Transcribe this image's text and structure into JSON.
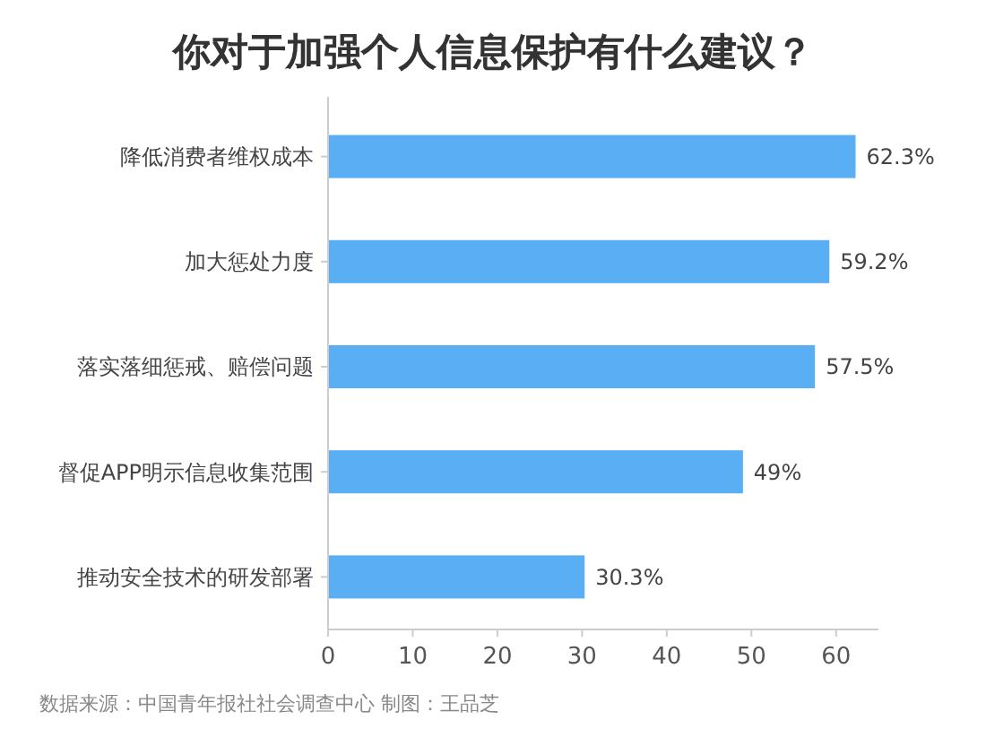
{
  "chart_data": {
    "type": "bar",
    "orientation": "horizontal",
    "title": "你对于加强个人信息保护有什么建议？",
    "categories": [
      "降低消费者维权成本",
      "加大惩处力度",
      "落实落细惩戒、赔偿问题",
      "督促APP明示信息收集范围",
      "推动安全技术的研发部署"
    ],
    "values": [
      62.3,
      59.2,
      57.5,
      49,
      30.3
    ],
    "value_labels": [
      "62.3%",
      "59.2%",
      "57.5%",
      "49%",
      "30.3%"
    ],
    "color": "#5aaef3",
    "xlim": [
      0,
      65
    ],
    "xticks": [
      0,
      10,
      20,
      30,
      40,
      50,
      60
    ],
    "grid": false,
    "annotations": [
      "数据来源：中国青年报社社会调查中心 制图：王品芝"
    ]
  }
}
